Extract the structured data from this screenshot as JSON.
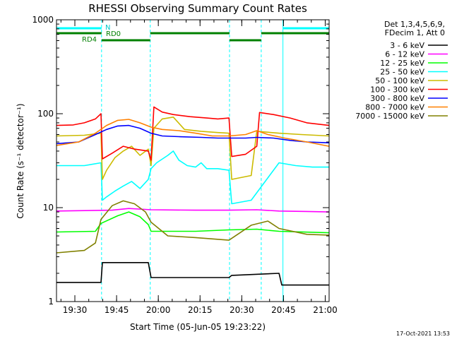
{
  "chart_data": {
    "type": "line",
    "title": "RHESSI Observing Summary Count Rates",
    "xlabel": "Start Time (05-Jun-05 19:23:22)",
    "ylabel": "Count Rate (s⁻¹ detector⁻¹)",
    "yscale": "log",
    "ylim": [
      1,
      1000
    ],
    "xlim_minutes": [
      0,
      98
    ],
    "x_ticks": [
      {
        "t": 6.6,
        "label": "19:30"
      },
      {
        "t": 21.6,
        "label": "19:45"
      },
      {
        "t": 36.6,
        "label": "20:00"
      },
      {
        "t": 51.6,
        "label": "20:15"
      },
      {
        "t": 66.6,
        "label": "20:30"
      },
      {
        "t": 81.6,
        "label": "20:45"
      },
      {
        "t": 96.6,
        "label": "21:00"
      }
    ],
    "y_ticks": [
      {
        "v": 1,
        "label": "1"
      },
      {
        "v": 10,
        "label": "10"
      },
      {
        "v": 100,
        "label": "100"
      },
      {
        "v": 1000,
        "label": "1000"
      }
    ],
    "legend_header": [
      "Det 1,3,4,5,6,9,",
      "FDecim 1, Att 0"
    ],
    "series": [
      {
        "name": "3 - 6 keV",
        "color": "#000000",
        "points": [
          [
            0,
            1.6
          ],
          [
            16,
            1.6
          ],
          [
            16.5,
            2.6
          ],
          [
            33,
            2.6
          ],
          [
            34,
            1.8
          ],
          [
            62,
            1.8
          ],
          [
            63,
            1.9
          ],
          [
            80,
            2.0
          ],
          [
            81,
            1.5
          ],
          [
            98,
            1.5
          ]
        ]
      },
      {
        "name": "6 - 12 keV",
        "color": "#ff00ff",
        "points": [
          [
            0,
            9.2
          ],
          [
            20,
            9.4
          ],
          [
            26,
            9.8
          ],
          [
            34,
            9.5
          ],
          [
            50,
            9.4
          ],
          [
            62,
            9.4
          ],
          [
            72,
            9.5
          ],
          [
            80,
            9.2
          ],
          [
            90,
            9.1
          ],
          [
            98,
            9.0
          ]
        ]
      },
      {
        "name": "12 - 25 keV",
        "color": "#00ff00",
        "points": [
          [
            0,
            5.5
          ],
          [
            14,
            5.6
          ],
          [
            16,
            6.8
          ],
          [
            22,
            8.2
          ],
          [
            26,
            9.0
          ],
          [
            30,
            8.0
          ],
          [
            33,
            6.6
          ],
          [
            34,
            5.6
          ],
          [
            50,
            5.6
          ],
          [
            62,
            5.8
          ],
          [
            72,
            5.9
          ],
          [
            80,
            5.6
          ],
          [
            98,
            5.4
          ]
        ]
      },
      {
        "name": "25 - 50 keV",
        "color": "#00ffff",
        "points": [
          [
            0,
            28
          ],
          [
            10,
            28
          ],
          [
            16,
            30
          ],
          [
            16.5,
            12
          ],
          [
            18,
            13
          ],
          [
            21,
            15
          ],
          [
            24,
            17
          ],
          [
            27,
            19
          ],
          [
            30,
            16
          ],
          [
            33,
            20
          ],
          [
            34,
            26
          ],
          [
            36,
            30
          ],
          [
            40,
            36
          ],
          [
            42,
            40
          ],
          [
            44,
            32
          ],
          [
            47,
            28
          ],
          [
            50,
            27
          ],
          [
            52,
            30
          ],
          [
            54,
            26
          ],
          [
            58,
            26
          ],
          [
            62,
            25
          ],
          [
            63,
            11
          ],
          [
            70,
            12
          ],
          [
            80,
            30
          ],
          [
            86,
            28
          ],
          [
            92,
            27
          ],
          [
            98,
            27
          ]
        ]
      },
      {
        "name": "50 - 100 keV",
        "color": "#ccbb00",
        "points": [
          [
            0,
            58
          ],
          [
            10,
            59
          ],
          [
            16,
            62
          ],
          [
            16.5,
            20
          ],
          [
            18,
            25
          ],
          [
            21,
            34
          ],
          [
            24,
            40
          ],
          [
            27,
            45
          ],
          [
            30,
            36
          ],
          [
            33,
            42
          ],
          [
            34,
            28
          ],
          [
            35,
            70
          ],
          [
            38,
            88
          ],
          [
            42,
            92
          ],
          [
            46,
            68
          ],
          [
            52,
            65
          ],
          [
            58,
            63
          ],
          [
            62,
            62
          ],
          [
            63,
            20
          ],
          [
            70,
            22
          ],
          [
            72,
            65
          ],
          [
            80,
            62
          ],
          [
            88,
            60
          ],
          [
            98,
            58
          ]
        ]
      },
      {
        "name": "100 - 300 keV",
        "color": "#ff0000",
        "points": [
          [
            0,
            75
          ],
          [
            6,
            76
          ],
          [
            10,
            80
          ],
          [
            14,
            88
          ],
          [
            16,
            100
          ],
          [
            16.5,
            33
          ],
          [
            20,
            38
          ],
          [
            24,
            45
          ],
          [
            28,
            42
          ],
          [
            33,
            40
          ],
          [
            34,
            32
          ],
          [
            35,
            118
          ],
          [
            38,
            104
          ],
          [
            42,
            98
          ],
          [
            48,
            93
          ],
          [
            54,
            90
          ],
          [
            58,
            88
          ],
          [
            62,
            90
          ],
          [
            63,
            35
          ],
          [
            68,
            37
          ],
          [
            72,
            45
          ],
          [
            73,
            103
          ],
          [
            78,
            98
          ],
          [
            84,
            90
          ],
          [
            90,
            80
          ],
          [
            98,
            75
          ]
        ]
      },
      {
        "name": "300 - 800 keV",
        "color": "#0000ff",
        "points": [
          [
            0,
            48
          ],
          [
            8,
            50
          ],
          [
            14,
            60
          ],
          [
            18,
            68
          ],
          [
            22,
            74
          ],
          [
            26,
            75
          ],
          [
            30,
            70
          ],
          [
            34,
            62
          ],
          [
            38,
            58
          ],
          [
            44,
            57
          ],
          [
            52,
            56
          ],
          [
            58,
            55
          ],
          [
            62,
            55
          ],
          [
            68,
            55
          ],
          [
            72,
            56
          ],
          [
            78,
            55
          ],
          [
            84,
            52
          ],
          [
            90,
            50
          ],
          [
            98,
            49
          ]
        ]
      },
      {
        "name": "800 - 7000 keV",
        "color": "#ff8000",
        "points": [
          [
            0,
            46
          ],
          [
            8,
            50
          ],
          [
            14,
            62
          ],
          [
            18,
            75
          ],
          [
            22,
            85
          ],
          [
            26,
            87
          ],
          [
            30,
            80
          ],
          [
            34,
            72
          ],
          [
            38,
            68
          ],
          [
            44,
            66
          ],
          [
            50,
            62
          ],
          [
            56,
            58
          ],
          [
            62,
            58
          ],
          [
            68,
            60
          ],
          [
            72,
            66
          ],
          [
            76,
            60
          ],
          [
            82,
            55
          ],
          [
            90,
            50
          ],
          [
            98,
            45
          ]
        ]
      },
      {
        "name": "7000 - 15000 keV",
        "color": "#808000",
        "points": [
          [
            0,
            3.3
          ],
          [
            10,
            3.5
          ],
          [
            14,
            4.2
          ],
          [
            16,
            7.5
          ],
          [
            20,
            10.5
          ],
          [
            24,
            11.8
          ],
          [
            28,
            11
          ],
          [
            32,
            9
          ],
          [
            34,
            7
          ],
          [
            40,
            5
          ],
          [
            50,
            4.8
          ],
          [
            62,
            4.5
          ],
          [
            70,
            6.5
          ],
          [
            76,
            7.2
          ],
          [
            80,
            6.0
          ],
          [
            90,
            5.2
          ],
          [
            98,
            5.1
          ]
        ]
      }
    ],
    "annotations": [
      {
        "type": "vline",
        "t": 16.2,
        "style": "dashed",
        "color": "#00ffff"
      },
      {
        "type": "vline",
        "t": 33.7,
        "style": "dashed",
        "color": "#00ffff"
      },
      {
        "type": "vline",
        "t": 62.2,
        "style": "dashed",
        "color": "#00ffff"
      },
      {
        "type": "vline",
        "t": 73.6,
        "style": "dashed",
        "color": "#00ffff"
      },
      {
        "type": "vline",
        "t": 81.4,
        "style": "solid",
        "color": "#00ffff"
      },
      {
        "type": "vline",
        "t": 98.0,
        "style": "dashed",
        "color": "#00ffff"
      }
    ],
    "flag_bars": [
      {
        "name": "night",
        "color": "#00ffff",
        "segments": [
          [
            0,
            16.2
          ],
          [
            81.4,
            98
          ]
        ]
      },
      {
        "name": "rd-flag-upper",
        "color": "#008000",
        "segments": [
          [
            0,
            16.2
          ],
          [
            33.7,
            62.2
          ],
          [
            73.6,
            98
          ]
        ]
      },
      {
        "name": "rd-flag-lower",
        "color": "#008000",
        "segments": [
          [
            16.2,
            33.7
          ],
          [
            62.2,
            73.6
          ]
        ]
      }
    ],
    "text_annotations": [
      "N",
      "RD0",
      "RD4"
    ]
  },
  "footer": {
    "date_stamp": "17-Oct-2021 13:53"
  }
}
